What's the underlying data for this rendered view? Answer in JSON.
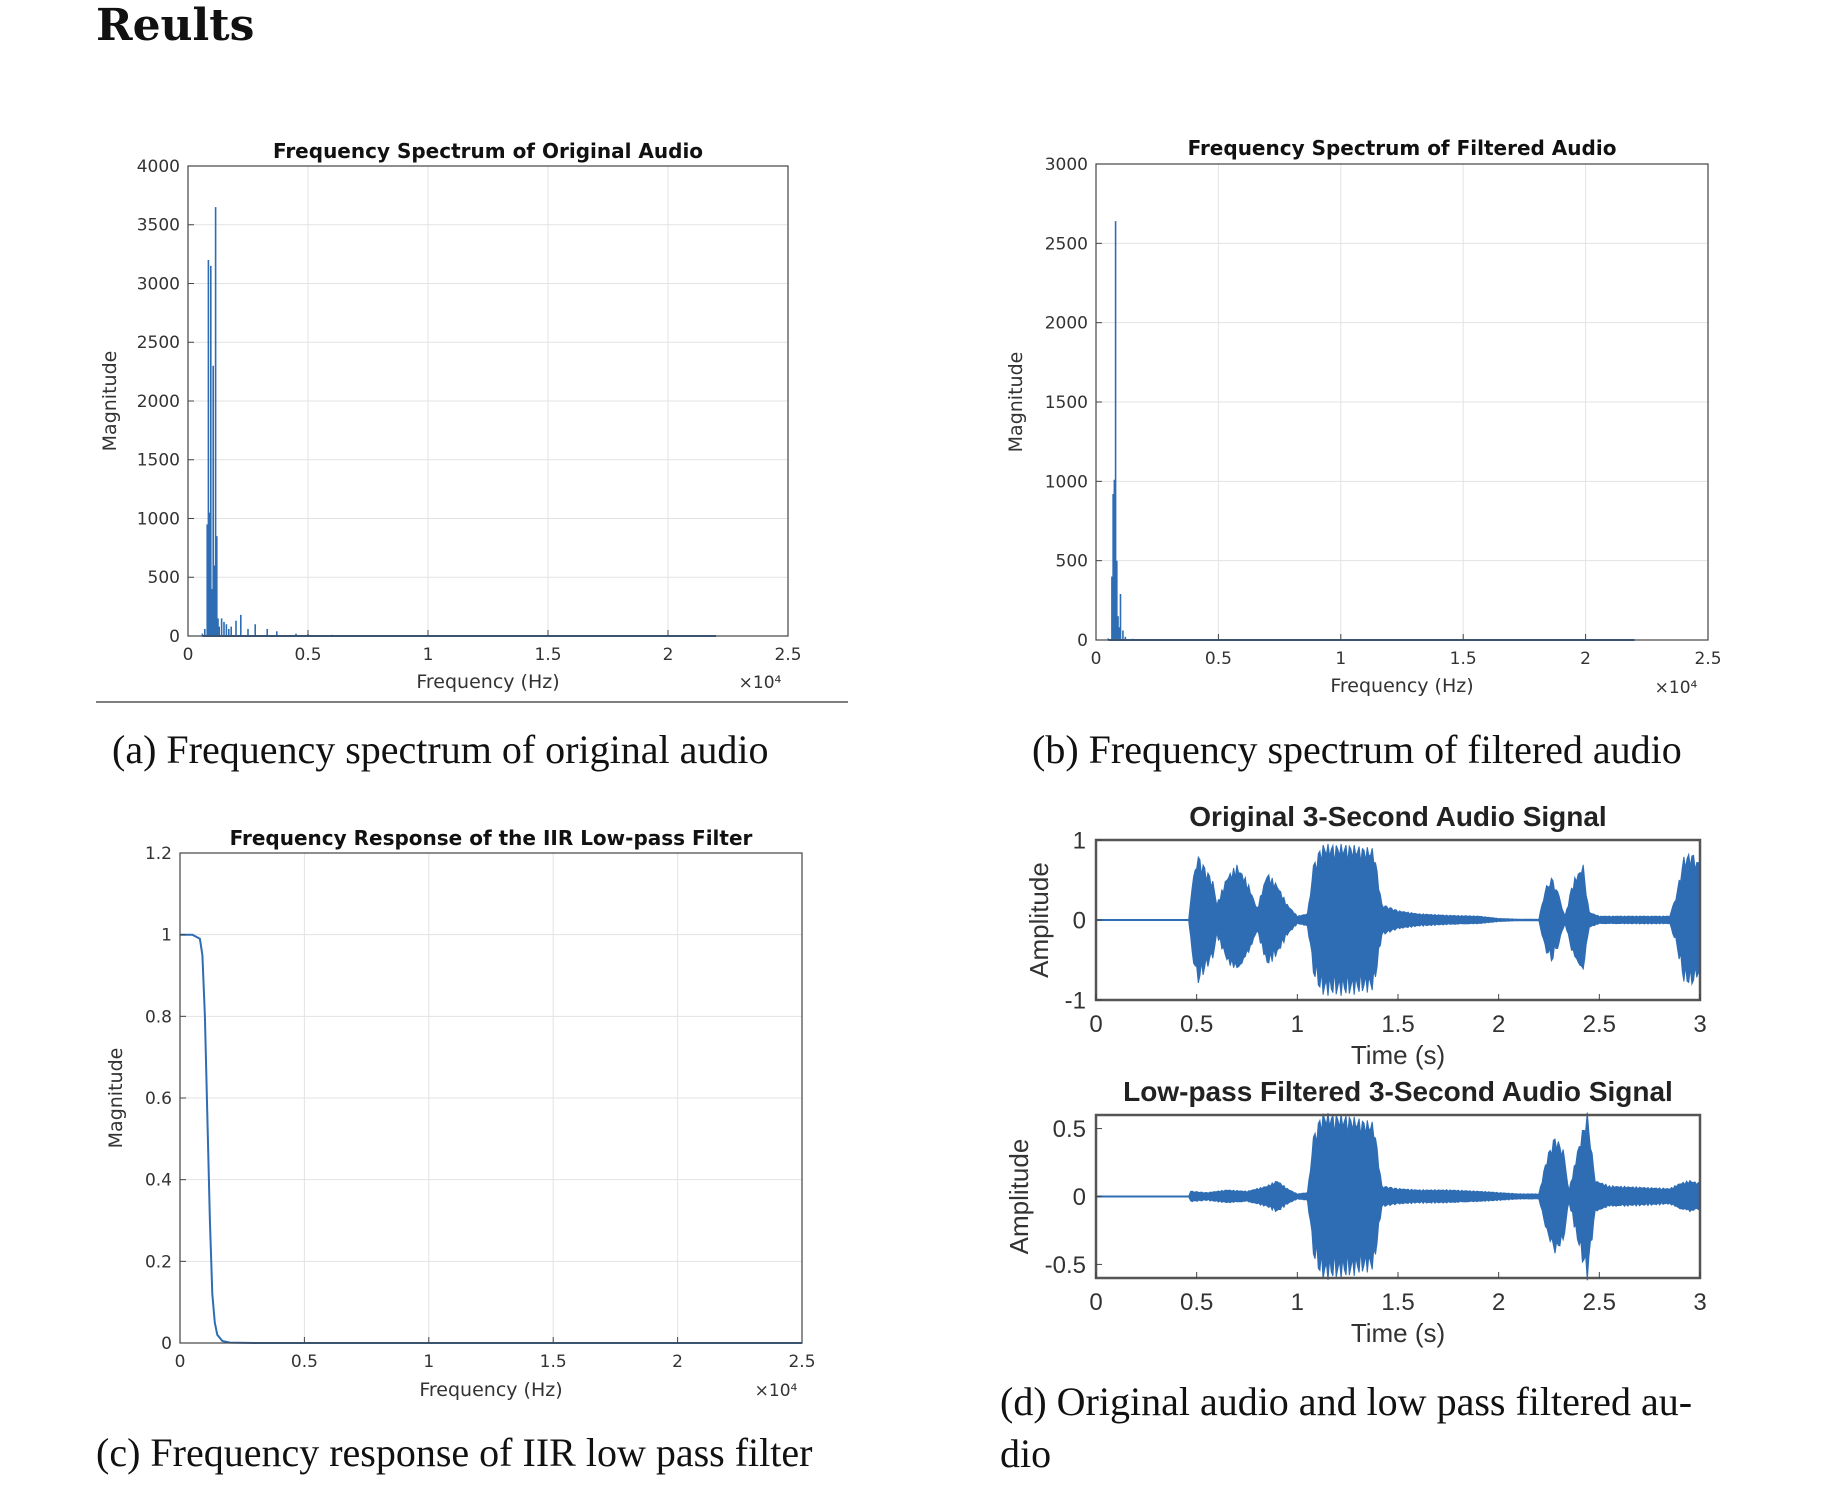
{
  "heading": "Reults",
  "captions": {
    "a": "(a) Frequency spectrum of original audio",
    "b": "(b) Frequency spectrum of filtered audio",
    "c": "(c) Frequency response of IIR low pass filter",
    "d_line1": "(d) Original audio and low pass filtered au-",
    "d_line2": "dio"
  },
  "colors": {
    "series": "#2e6db4",
    "grid": "#e3e3e3",
    "axis": "#333333"
  },
  "chart_data": [
    {
      "id": "a",
      "type": "line",
      "title": "Frequency Spectrum of Original Audio",
      "xlabel": "Frequency (Hz)",
      "ylabel": "Magnitude",
      "x_multiplier": "×10⁴",
      "xlim": [
        0,
        2.5
      ],
      "ylim": [
        0,
        4000
      ],
      "xticks": [
        "0",
        "0.5",
        "1",
        "1.5",
        "2",
        "2.5"
      ],
      "yticks": [
        "0",
        "500",
        "1000",
        "1500",
        "2000",
        "2500",
        "3000",
        "3500",
        "4000"
      ],
      "grid": true,
      "series": [
        {
          "x": [
            0.06,
            0.07,
            0.08,
            0.085,
            0.09,
            0.095,
            0.1,
            0.105,
            0.11,
            0.115,
            0.12,
            0.125,
            0.13,
            0.14,
            0.15,
            0.16,
            0.17,
            0.18,
            0.2,
            0.22,
            0.25,
            0.28,
            0.33,
            0.37,
            0.45,
            0.5,
            0.6,
            0.8,
            1.0,
            1.5,
            2.0,
            2.2
          ],
          "y": [
            20,
            60,
            950,
            3200,
            1050,
            3150,
            400,
            2300,
            600,
            3650,
            850,
            150,
            80,
            150,
            120,
            100,
            60,
            80,
            130,
            180,
            60,
            100,
            60,
            40,
            20,
            15,
            10,
            8,
            6,
            5,
            4,
            3
          ]
        }
      ]
    },
    {
      "id": "b",
      "type": "line",
      "title": "Frequency Spectrum of Filtered Audio",
      "xlabel": "Frequency (Hz)",
      "ylabel": "Magnitude",
      "x_multiplier": "×10⁴",
      "xlim": [
        0,
        2.5
      ],
      "ylim": [
        0,
        3000
      ],
      "xticks": [
        "0",
        "0.5",
        "1",
        "1.5",
        "2",
        "2.5"
      ],
      "yticks": [
        "0",
        "500",
        "1000",
        "1500",
        "2000",
        "2500",
        "3000"
      ],
      "grid": true,
      "series": [
        {
          "x": [
            0.05,
            0.065,
            0.07,
            0.075,
            0.08,
            0.085,
            0.09,
            0.095,
            0.1,
            0.11,
            0.12,
            0.15,
            0.2,
            0.5,
            1.0,
            1.5,
            2.0,
            2.2
          ],
          "y": [
            10,
            400,
            920,
            1010,
            2640,
            500,
            150,
            80,
            290,
            60,
            20,
            8,
            5,
            3,
            2,
            2,
            2,
            1
          ]
        }
      ]
    },
    {
      "id": "c",
      "type": "line",
      "title": "Frequency Response of the IIR Low-pass Filter",
      "xlabel": "Frequency (Hz)",
      "ylabel": "Magnitude",
      "x_multiplier": "×10⁴",
      "xlim": [
        0,
        2.5
      ],
      "ylim": [
        0,
        1.2
      ],
      "xticks": [
        "0",
        "0.5",
        "1",
        "1.5",
        "2",
        "2.5"
      ],
      "yticks": [
        "0",
        "0.2",
        "0.4",
        "0.6",
        "0.8",
        "1",
        "1.2"
      ],
      "grid": true,
      "series": [
        {
          "x": [
            0,
            0.05,
            0.08,
            0.09,
            0.1,
            0.11,
            0.12,
            0.13,
            0.14,
            0.15,
            0.17,
            0.2,
            0.3,
            0.5,
            1.0,
            1.5,
            2.0,
            2.5
          ],
          "y": [
            1,
            1,
            0.99,
            0.95,
            0.8,
            0.55,
            0.3,
            0.12,
            0.05,
            0.02,
            0.005,
            0.001,
            0,
            0,
            0,
            0,
            0,
            0
          ]
        }
      ]
    },
    {
      "id": "d1",
      "type": "line",
      "title": "Original 3-Second Audio Signal",
      "xlabel": "Time (s)",
      "ylabel": "Amplitude",
      "xlim": [
        0,
        3
      ],
      "ylim": [
        -1,
        1
      ],
      "xticks": [
        "0",
        "0.5",
        "1",
        "1.5",
        "2",
        "2.5",
        "3"
      ],
      "yticks": [
        "-1",
        "0",
        "1"
      ],
      "grid": false,
      "envelope": {
        "t": [
          0,
          0.46,
          0.47,
          0.5,
          0.58,
          0.6,
          0.65,
          0.7,
          0.75,
          0.8,
          0.85,
          0.9,
          0.95,
          1.0,
          1.05,
          1.08,
          1.12,
          1.25,
          1.38,
          1.42,
          1.5,
          1.6,
          1.75,
          1.9,
          2.0,
          2.1,
          2.2,
          2.23,
          2.27,
          2.3,
          2.33,
          2.37,
          2.42,
          2.45,
          2.5,
          2.7,
          2.85,
          2.88,
          2.92,
          2.96,
          3.0
        ],
        "amp": [
          0,
          0,
          0.25,
          0.85,
          0.5,
          0.2,
          0.55,
          0.7,
          0.5,
          0.15,
          0.6,
          0.45,
          0.2,
          0.05,
          0.08,
          0.7,
          0.95,
          0.95,
          0.9,
          0.2,
          0.12,
          0.08,
          0.06,
          0.05,
          0.02,
          0.01,
          0.01,
          0.4,
          0.55,
          0.3,
          0.05,
          0.5,
          0.7,
          0.1,
          0.05,
          0.05,
          0.05,
          0.3,
          0.8,
          0.85,
          0.7
        ]
      }
    },
    {
      "id": "d2",
      "type": "line",
      "title": "Low-pass Filtered 3-Second Audio Signal",
      "xlabel": "Time (s)",
      "ylabel": "Amplitude",
      "xlim": [
        0,
        3
      ],
      "ylim": [
        -0.6,
        0.6
      ],
      "xticks": [
        "0",
        "0.5",
        "1",
        "1.5",
        "2",
        "2.5",
        "3"
      ],
      "yticks": [
        "-0.5",
        "0",
        "0.5"
      ],
      "grid": false,
      "envelope": {
        "t": [
          0,
          0.46,
          0.47,
          0.55,
          0.65,
          0.75,
          0.85,
          0.9,
          0.95,
          1.0,
          1.05,
          1.08,
          1.12,
          1.25,
          1.38,
          1.42,
          1.5,
          1.6,
          1.75,
          1.9,
          2.0,
          2.1,
          2.2,
          2.24,
          2.28,
          2.32,
          2.35,
          2.4,
          2.44,
          2.48,
          2.55,
          2.7,
          2.85,
          2.9,
          2.95,
          3.0
        ],
        "amp": [
          0,
          0,
          0.04,
          0.03,
          0.05,
          0.04,
          0.08,
          0.12,
          0.06,
          0.02,
          0.03,
          0.45,
          0.62,
          0.6,
          0.55,
          0.08,
          0.06,
          0.05,
          0.05,
          0.04,
          0.03,
          0.02,
          0.02,
          0.3,
          0.45,
          0.35,
          0.05,
          0.4,
          0.62,
          0.12,
          0.08,
          0.07,
          0.06,
          0.1,
          0.12,
          0.1
        ]
      }
    }
  ]
}
